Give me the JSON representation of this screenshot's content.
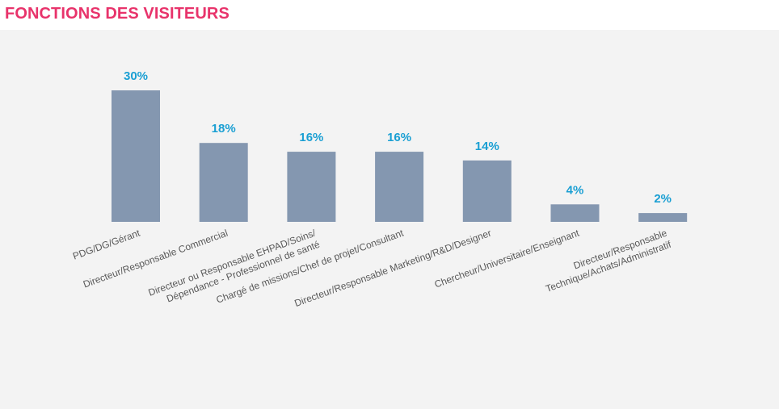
{
  "header": {
    "title": "FONCTIONS DES VISITEURS"
  },
  "colors": {
    "title": "#e8336b",
    "bar": "#8497b0",
    "value_label": "#1a9fd3",
    "panel_background": "#f3f3f3",
    "tick_label": "#595959"
  },
  "chart_data": {
    "type": "bar",
    "title": "",
    "xlabel": "",
    "ylabel": "",
    "unit": "%",
    "ylim": [
      0,
      30
    ],
    "grid": false,
    "legend": "none",
    "categories": [
      [
        "PDG/DG/Gérant"
      ],
      [
        "Directeur/Responsable Commercial"
      ],
      [
        "Directeur ou Responsable EHPAD/Soins/",
        "Dépendance - Professionnel de santé"
      ],
      [
        "Chargé de missions/Chef de projet/Consultant"
      ],
      [
        "Directeur/Responsable Marketing/R&D/Designer"
      ],
      [
        "Chercheur/Universitaire/Enseignant"
      ],
      [
        "Directeur/Responsable",
        "Technique/Achats/Administratif"
      ]
    ],
    "values": [
      30,
      18,
      16,
      16,
      14,
      4,
      2
    ],
    "value_labels": [
      "30%",
      "18%",
      "16%",
      "16%",
      "14%",
      "4%",
      "2%"
    ]
  }
}
